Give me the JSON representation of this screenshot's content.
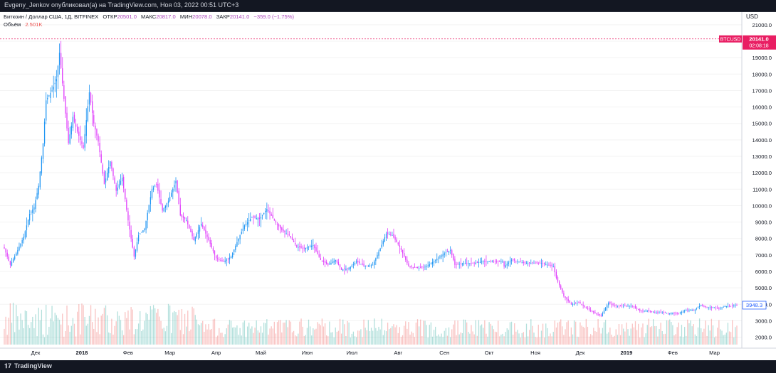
{
  "header": {
    "published": "Evgeny_Jenkov опубликовал(а) на TradingView.com, Ноя 03, 2022 00:51 UTC+3"
  },
  "footer": {
    "brand": "TradingView",
    "brand_icon": "tradingview-logo-icon"
  },
  "colors": {
    "up": "#26a69a",
    "down": "#ab47bc",
    "up_line": "#2196f3",
    "down_line": "#e040fb",
    "badge": "#e91e63",
    "marker": "#2962ff"
  },
  "chart_data": {
    "type": "candlestick",
    "legend": {
      "symbol": "Биткоин / Доллар США, 1Д, BITFINEX",
      "open_label": "ОТКР",
      "open": "20501.0",
      "high_label": "МАКС",
      "high": "20817.0",
      "low_label": "МИН",
      "low": "20078.0",
      "close_label": "ЗАКР",
      "close": "20141.0",
      "change": "−359.0 (−1.75%)",
      "volume_label": "Объём",
      "volume": "2.501K"
    },
    "y_axis": {
      "unit": "USD",
      "ticks": [
        "21000.0",
        "20000.0",
        "19000.0",
        "18000.0",
        "17000.0",
        "16000.0",
        "15000.0",
        "14000.0",
        "13000.0",
        "12000.0",
        "11000.0",
        "10000.0",
        "9000.0",
        "8000.0",
        "7000.0",
        "6000.0",
        "5000.0",
        "4000.0",
        "3000.0",
        "2000.0"
      ],
      "range": [
        1550,
        21600
      ]
    },
    "x_axis": {
      "ticks": [
        "Дек",
        "2018",
        "Фев",
        "Мар",
        "Апр",
        "Май",
        "Июн",
        "Июл",
        "Авг",
        "Сен",
        "Окт",
        "Ноя",
        "Дек",
        "2019",
        "Фев",
        "Мар"
      ]
    },
    "price_badge": {
      "symbol": "BTCUSD",
      "price": "20141.0",
      "countdown": "02:08:18",
      "value": 20141
    },
    "last_marker": {
      "price": "3948.3",
      "value": 3948.3
    },
    "close_series": [
      [
        "2017-11-10",
        7400
      ],
      [
        "2017-11-14",
        6400
      ],
      [
        "2017-11-18",
        7100
      ],
      [
        "2017-11-23",
        8100
      ],
      [
        "2017-11-27",
        9500
      ],
      [
        "2017-11-30",
        9900
      ],
      [
        "2017-12-03",
        11200
      ],
      [
        "2017-12-06",
        13800
      ],
      [
        "2017-12-08",
        16400
      ],
      [
        "2017-12-12",
        17000
      ],
      [
        "2017-12-15",
        17700
      ],
      [
        "2017-12-17",
        19300
      ],
      [
        "2017-12-20",
        16500
      ],
      [
        "2017-12-23",
        13800
      ],
      [
        "2017-12-26",
        15400
      ],
      [
        "2017-12-29",
        14500
      ],
      [
        "2018-01-02",
        13500
      ],
      [
        "2018-01-06",
        16900
      ],
      [
        "2018-01-09",
        15000
      ],
      [
        "2018-01-12",
        13900
      ],
      [
        "2018-01-16",
        11300
      ],
      [
        "2018-01-20",
        12700
      ],
      [
        "2018-01-24",
        10900
      ],
      [
        "2018-01-28",
        11700
      ],
      [
        "2018-02-01",
        9100
      ],
      [
        "2018-02-05",
        6900
      ],
      [
        "2018-02-08",
        8200
      ],
      [
        "2018-02-12",
        8600
      ],
      [
        "2018-02-17",
        11000
      ],
      [
        "2018-02-20",
        11300
      ],
      [
        "2018-02-24",
        9700
      ],
      [
        "2018-02-28",
        10300
      ],
      [
        "2018-03-05",
        11500
      ],
      [
        "2018-03-08",
        9400
      ],
      [
        "2018-03-12",
        9100
      ],
      [
        "2018-03-17",
        7900
      ],
      [
        "2018-03-22",
        8900
      ],
      [
        "2018-03-27",
        7900
      ],
      [
        "2018-04-01",
        6800
      ],
      [
        "2018-04-06",
        6600
      ],
      [
        "2018-04-11",
        6900
      ],
      [
        "2018-04-16",
        8000
      ],
      [
        "2018-04-20",
        8800
      ],
      [
        "2018-04-25",
        9300
      ],
      [
        "2018-04-30",
        9200
      ],
      [
        "2018-05-05",
        9800
      ],
      [
        "2018-05-10",
        9100
      ],
      [
        "2018-05-15",
        8500
      ],
      [
        "2018-05-20",
        8200
      ],
      [
        "2018-05-25",
        7500
      ],
      [
        "2018-05-30",
        7400
      ],
      [
        "2018-06-05",
        7600
      ],
      [
        "2018-06-10",
        6700
      ],
      [
        "2018-06-15",
        6400
      ],
      [
        "2018-06-20",
        6700
      ],
      [
        "2018-06-24",
        6100
      ],
      [
        "2018-06-29",
        6200
      ],
      [
        "2018-07-04",
        6600
      ],
      [
        "2018-07-10",
        6300
      ],
      [
        "2018-07-15",
        6400
      ],
      [
        "2018-07-20",
        7400
      ],
      [
        "2018-07-24",
        8300
      ],
      [
        "2018-07-28",
        8200
      ],
      [
        "2018-08-02",
        7500
      ],
      [
        "2018-08-08",
        6300
      ],
      [
        "2018-08-14",
        6200
      ],
      [
        "2018-08-20",
        6300
      ],
      [
        "2018-08-26",
        6700
      ],
      [
        "2018-09-01",
        7100
      ],
      [
        "2018-09-05",
        7300
      ],
      [
        "2018-09-08",
        6400
      ],
      [
        "2018-09-14",
        6500
      ],
      [
        "2018-09-20",
        6500
      ],
      [
        "2018-09-26",
        6600
      ],
      [
        "2018-10-02",
        6600
      ],
      [
        "2018-10-10",
        6600
      ],
      [
        "2018-10-11",
        6300
      ],
      [
        "2018-10-16",
        6700
      ],
      [
        "2018-10-25",
        6500
      ],
      [
        "2018-11-05",
        6500
      ],
      [
        "2018-11-13",
        6300
      ],
      [
        "2018-11-15",
        5600
      ],
      [
        "2018-11-20",
        4500
      ],
      [
        "2018-11-25",
        4000
      ],
      [
        "2018-11-30",
        4100
      ],
      [
        "2018-12-05",
        3800
      ],
      [
        "2018-12-10",
        3500
      ],
      [
        "2018-12-15",
        3300
      ],
      [
        "2018-12-20",
        4100
      ],
      [
        "2018-12-25",
        3900
      ],
      [
        "2018-12-30",
        3900
      ],
      [
        "2019-01-05",
        3900
      ],
      [
        "2019-01-10",
        3600
      ],
      [
        "2019-01-15",
        3600
      ],
      [
        "2019-01-20",
        3500
      ],
      [
        "2019-01-25",
        3500
      ],
      [
        "2019-01-30",
        3450
      ],
      [
        "2019-02-05",
        3450
      ],
      [
        "2019-02-10",
        3650
      ],
      [
        "2019-02-15",
        3620
      ],
      [
        "2019-02-20",
        3950
      ],
      [
        "2019-02-24",
        3800
      ],
      [
        "2019-02-28",
        3820
      ],
      [
        "2019-03-04",
        3750
      ],
      [
        "2019-03-08",
        3880
      ],
      [
        "2019-03-12",
        3900
      ],
      [
        "2019-03-16",
        3948.3
      ]
    ]
  }
}
